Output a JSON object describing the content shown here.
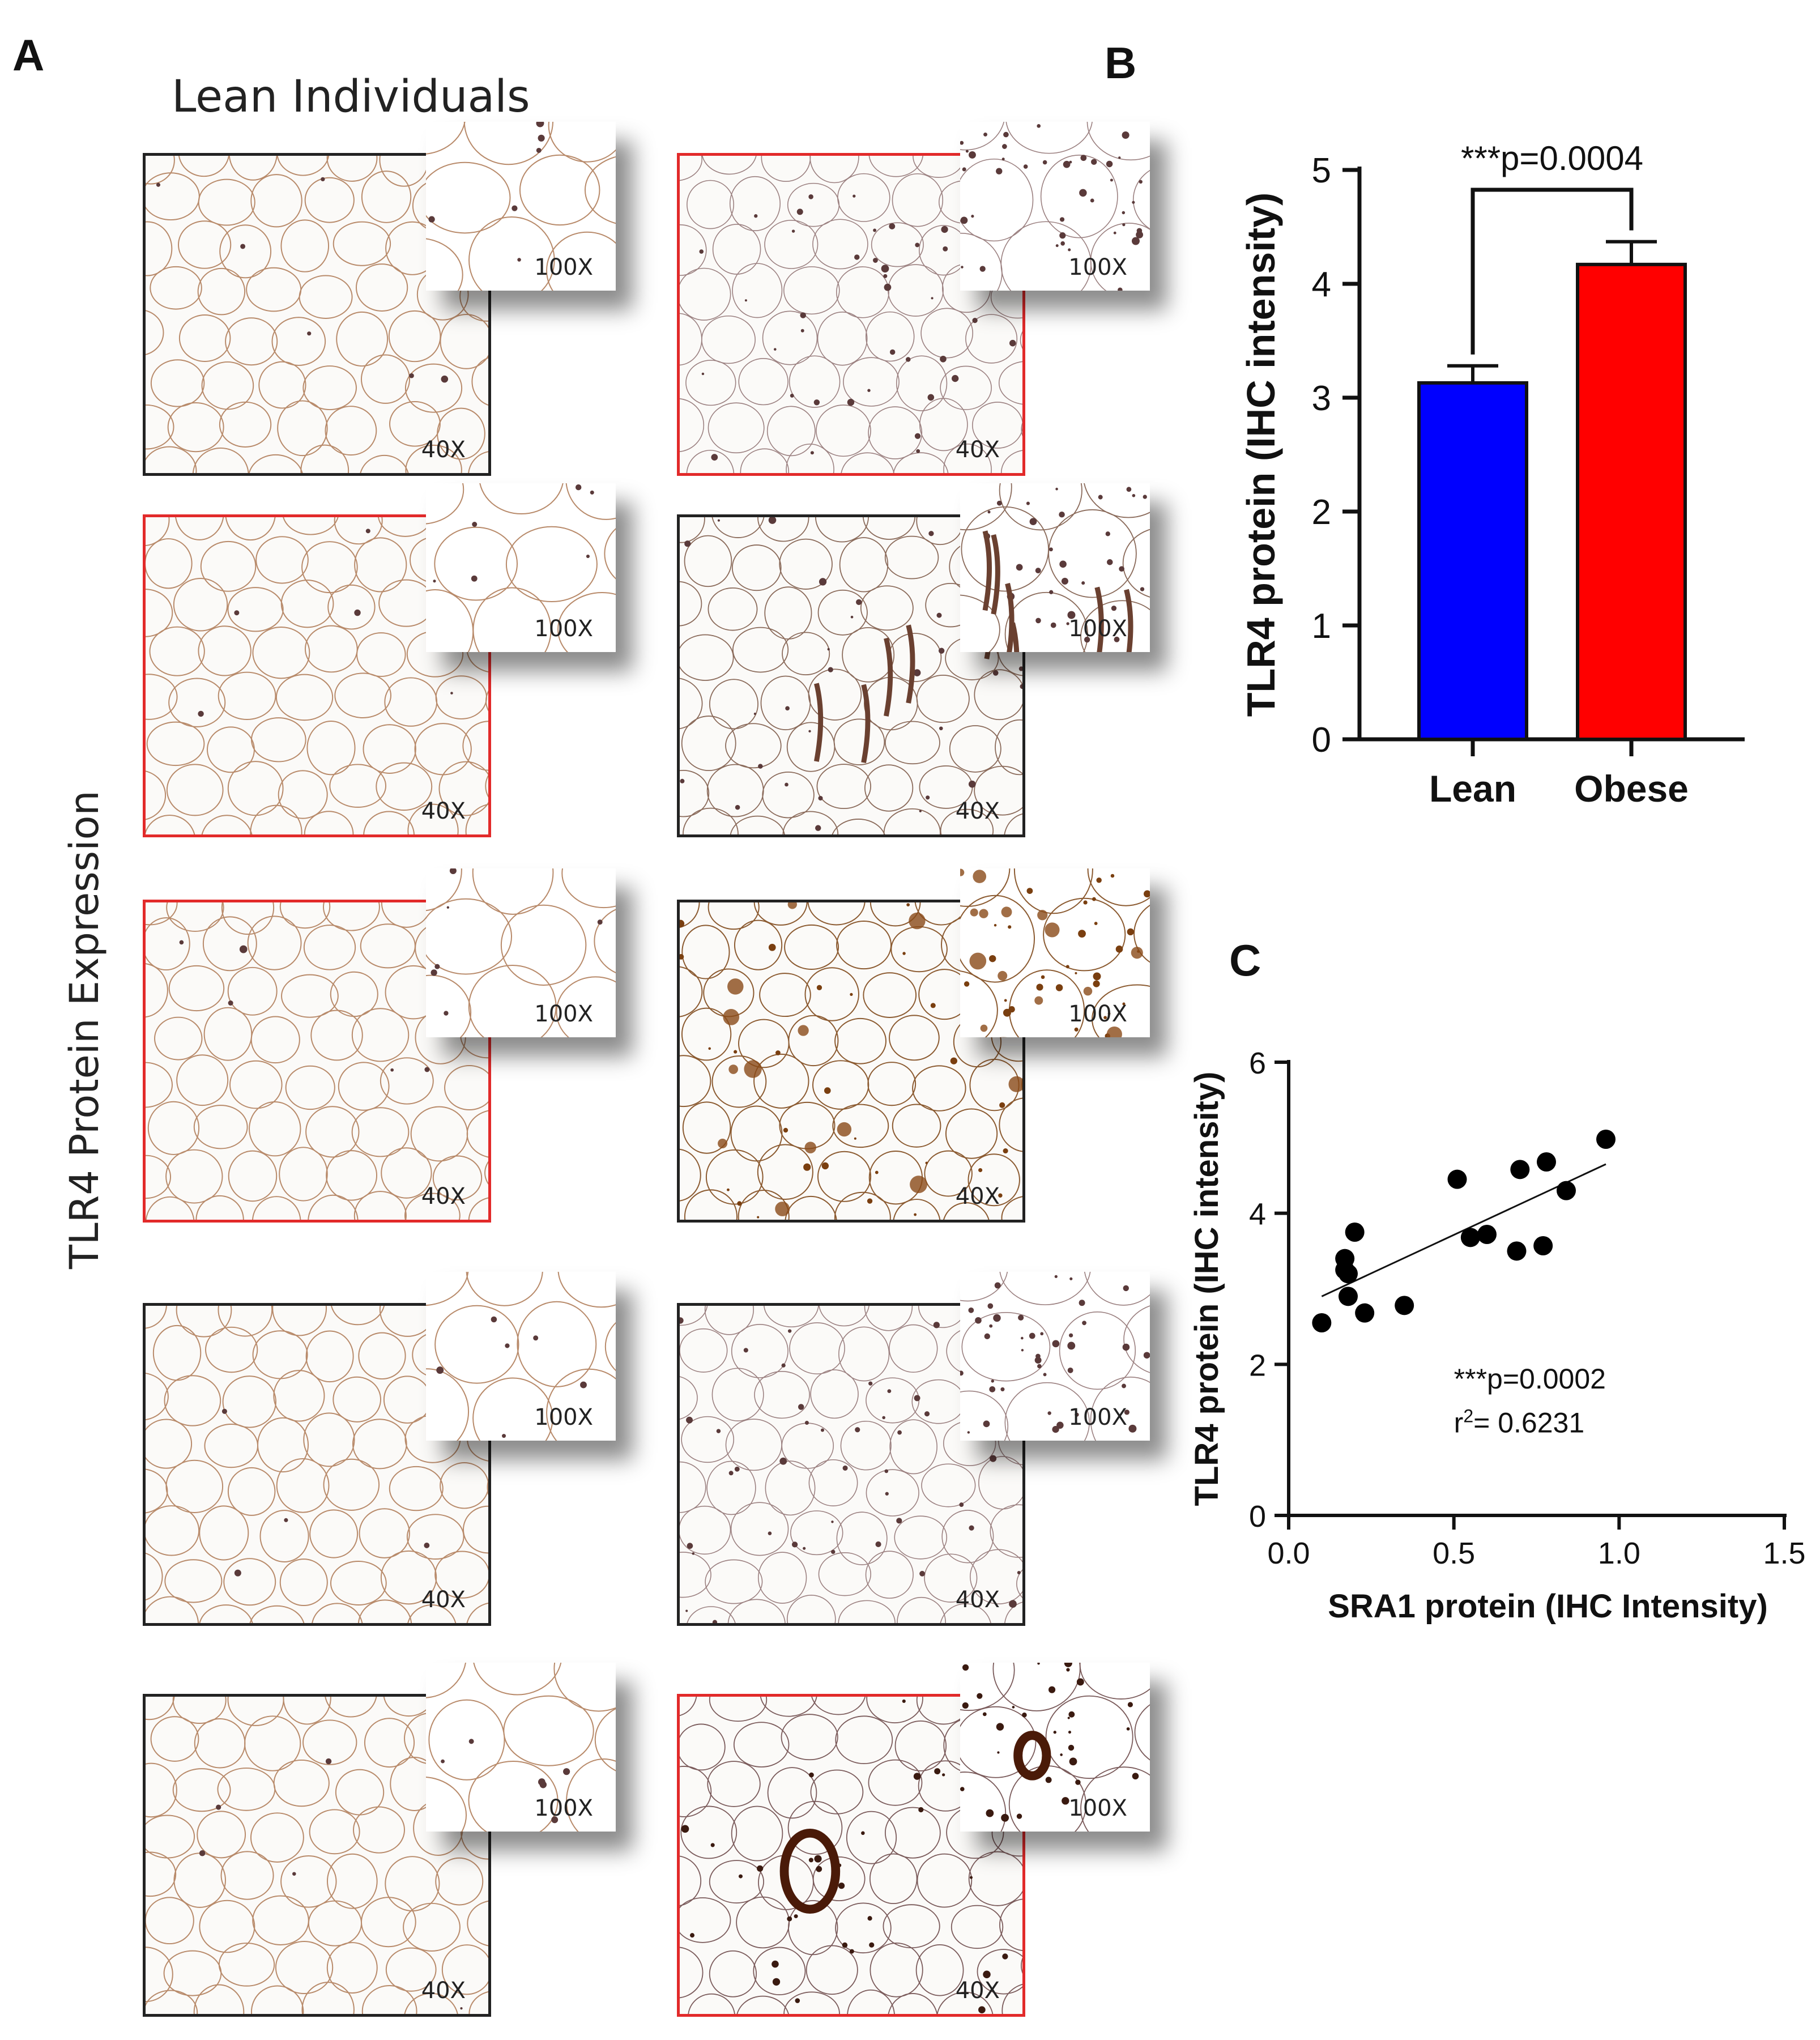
{
  "panelA": {
    "letter": "A",
    "heading": "Lean Individuals",
    "side_label": "TLR4 Protein Expression",
    "tiles": [
      {
        "label": "40X",
        "inset": "100X",
        "frame": "black",
        "stain": "light"
      },
      {
        "label": "40X",
        "inset": "100X",
        "frame": "red",
        "stain": "dots"
      },
      {
        "label": "40X",
        "inset": "100X",
        "frame": "red",
        "stain": "light"
      },
      {
        "label": "40X",
        "inset": "100X",
        "frame": "black",
        "stain": "medium"
      },
      {
        "label": "40X",
        "inset": "100X",
        "frame": "red",
        "stain": "light"
      },
      {
        "label": "40X",
        "inset": "100X",
        "frame": "black",
        "stain": "brown"
      },
      {
        "label": "40X",
        "inset": "100X",
        "frame": "black",
        "stain": "light"
      },
      {
        "label": "40X",
        "inset": "100X",
        "frame": "black",
        "stain": "dots"
      },
      {
        "label": "40X",
        "inset": "100X",
        "frame": "black",
        "stain": "light"
      },
      {
        "label": "40X",
        "inset": "100X",
        "frame": "red",
        "stain": "dark"
      }
    ]
  },
  "panelB": {
    "letter": "B",
    "chart_data": {
      "type": "bar",
      "categories": [
        "Lean",
        "Obese"
      ],
      "values": [
        3.13,
        4.17
      ],
      "errors": [
        0.15,
        0.2
      ],
      "colors": [
        "#0000ff",
        "#ff0000"
      ],
      "ylabel": "TLR4 protein (IHC intensity)",
      "ylim": [
        0,
        5
      ],
      "yticks": [
        "0",
        "1",
        "2",
        "3",
        "4",
        "5"
      ],
      "annotation": "***p=0.0004"
    }
  },
  "panelC": {
    "letter": "C",
    "chart_data": {
      "type": "scatter",
      "xlabel": "SRA1 protein (IHC Intensity)",
      "ylabel": "TLR4 protein (IHC intensity)",
      "xlim": [
        0,
        1.5
      ],
      "ylim": [
        0,
        6
      ],
      "xticks": [
        "0.0",
        "0.5",
        "1.0",
        "1.5"
      ],
      "yticks": [
        "0",
        "2",
        "4",
        "6"
      ],
      "points": [
        [
          0.1,
          2.55
        ],
        [
          0.17,
          3.25
        ],
        [
          0.17,
          3.4
        ],
        [
          0.18,
          3.2
        ],
        [
          0.18,
          2.9
        ],
        [
          0.2,
          3.75
        ],
        [
          0.23,
          2.68
        ],
        [
          0.35,
          2.78
        ],
        [
          0.51,
          4.45
        ],
        [
          0.55,
          3.68
        ],
        [
          0.6,
          3.72
        ],
        [
          0.69,
          3.5
        ],
        [
          0.7,
          4.58
        ],
        [
          0.77,
          3.57
        ],
        [
          0.78,
          4.68
        ],
        [
          0.84,
          4.3
        ],
        [
          0.96,
          4.98
        ]
      ],
      "fit": [
        [
          0.1,
          2.9
        ],
        [
          0.96,
          4.65
        ]
      ],
      "annotation_p": "***p=0.0002",
      "annotation_r_prefix": "r",
      "annotation_r_sup": "2",
      "annotation_r_value": "= 0.6231"
    }
  }
}
